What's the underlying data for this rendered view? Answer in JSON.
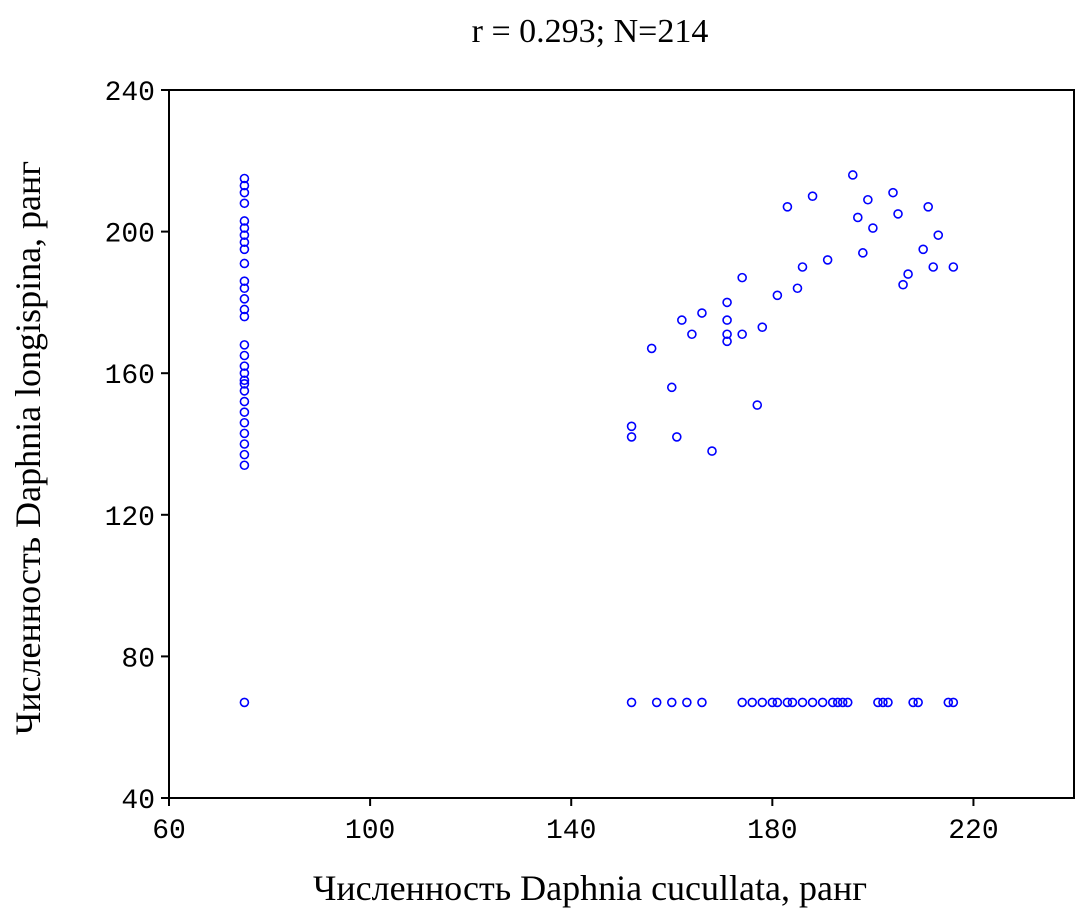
{
  "chart_data": {
    "type": "scatter",
    "title": "r = 0.293; N=214",
    "xlabel": "Численность Daphnia cucullata, ранг",
    "ylabel": "Численность Daphnia longispina, ранг",
    "xlim": [
      60,
      240
    ],
    "ylim": [
      40,
      240
    ],
    "xticks": [
      60,
      100,
      140,
      180,
      220
    ],
    "yticks": [
      40,
      80,
      120,
      160,
      200,
      240
    ],
    "grid": false,
    "marker_color": "#0000ff",
    "points": [
      [
        75,
        215
      ],
      [
        75,
        213
      ],
      [
        75,
        211
      ],
      [
        75,
        208
      ],
      [
        75,
        203
      ],
      [
        75,
        201
      ],
      [
        75,
        199
      ],
      [
        75,
        197
      ],
      [
        75,
        195
      ],
      [
        75,
        191
      ],
      [
        75,
        186
      ],
      [
        75,
        184
      ],
      [
        75,
        181
      ],
      [
        75,
        178
      ],
      [
        75,
        176
      ],
      [
        75,
        168
      ],
      [
        75,
        165
      ],
      [
        75,
        162
      ],
      [
        75,
        160
      ],
      [
        75,
        158
      ],
      [
        75,
        157
      ],
      [
        75,
        155
      ],
      [
        75,
        152
      ],
      [
        75,
        149
      ],
      [
        75,
        146
      ],
      [
        75,
        143
      ],
      [
        75,
        140
      ],
      [
        75,
        137
      ],
      [
        75,
        134
      ],
      [
        75,
        67
      ],
      [
        152,
        145
      ],
      [
        152,
        142
      ],
      [
        156,
        167
      ],
      [
        160,
        156
      ],
      [
        161,
        142
      ],
      [
        162,
        175
      ],
      [
        164,
        171
      ],
      [
        166,
        177
      ],
      [
        168,
        138
      ],
      [
        171,
        180
      ],
      [
        171,
        175
      ],
      [
        171,
        171
      ],
      [
        171,
        169
      ],
      [
        174,
        187
      ],
      [
        174,
        171
      ],
      [
        177,
        151
      ],
      [
        178,
        173
      ],
      [
        181,
        182
      ],
      [
        183,
        207
      ],
      [
        185,
        184
      ],
      [
        186,
        190
      ],
      [
        188,
        210
      ],
      [
        191,
        192
      ],
      [
        196,
        216
      ],
      [
        197,
        204
      ],
      [
        198,
        194
      ],
      [
        199,
        209
      ],
      [
        200,
        201
      ],
      [
        204,
        211
      ],
      [
        205,
        205
      ],
      [
        206,
        185
      ],
      [
        207,
        188
      ],
      [
        210,
        195
      ],
      [
        211,
        207
      ],
      [
        212,
        190
      ],
      [
        213,
        199
      ],
      [
        216,
        190
      ],
      [
        152,
        67
      ],
      [
        157,
        67
      ],
      [
        160,
        67
      ],
      [
        163,
        67
      ],
      [
        166,
        67
      ],
      [
        174,
        67
      ],
      [
        176,
        67
      ],
      [
        178,
        67
      ],
      [
        180,
        67
      ],
      [
        181,
        67
      ],
      [
        183,
        67
      ],
      [
        184,
        67
      ],
      [
        186,
        67
      ],
      [
        188,
        67
      ],
      [
        190,
        67
      ],
      [
        192,
        67
      ],
      [
        193,
        67
      ],
      [
        194,
        67
      ],
      [
        195,
        67
      ],
      [
        201,
        67
      ],
      [
        202,
        67
      ],
      [
        203,
        67
      ],
      [
        208,
        67
      ],
      [
        209,
        67
      ],
      [
        215,
        67
      ],
      [
        216,
        67
      ]
    ]
  }
}
